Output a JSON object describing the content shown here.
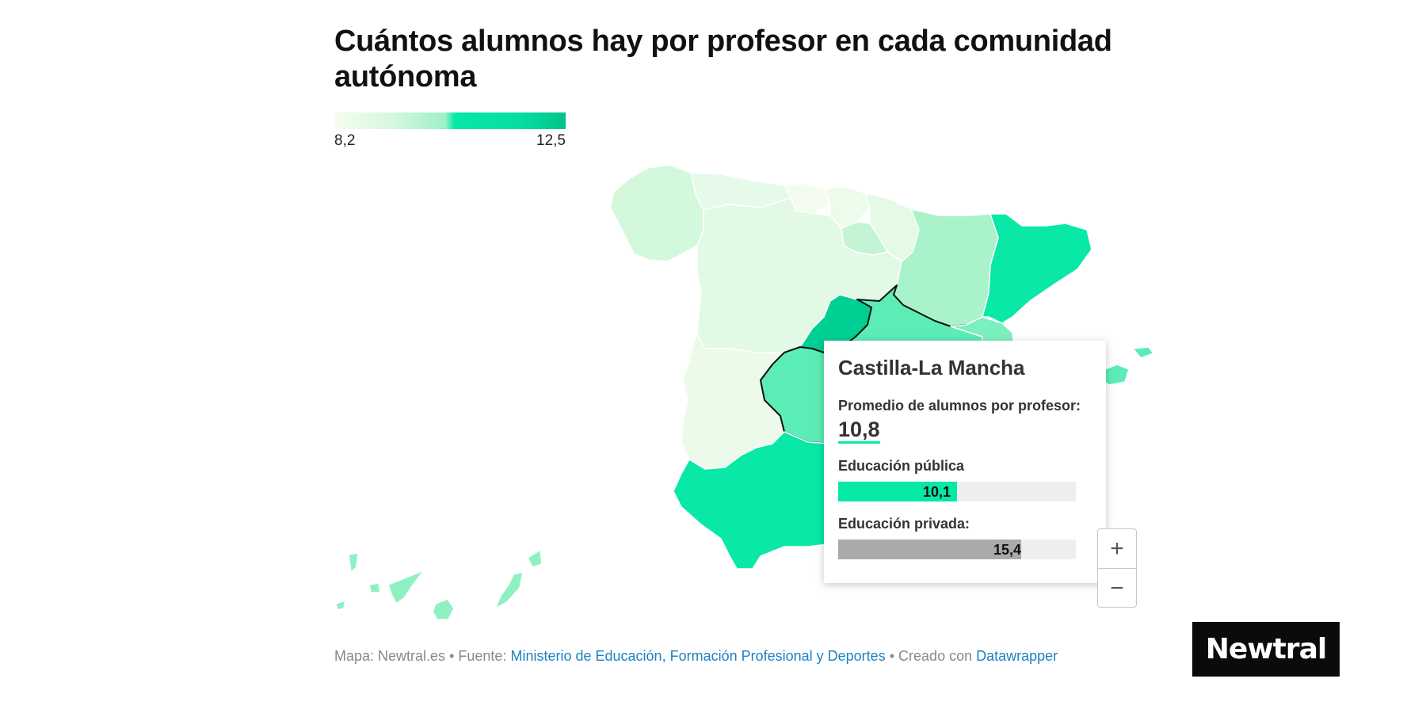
{
  "title": "Cuántos alumnos hay por profesor en cada comunidad autónoma",
  "legend": {
    "min_label": "8,2",
    "max_label": "12,5",
    "min": 8.2,
    "max": 12.5,
    "colors": [
      "#f5fdf0",
      "#d6f8dd",
      "#9ef0c8",
      "#05e8a6",
      "#00c489"
    ]
  },
  "tooltip": {
    "region": "Castilla-La Mancha",
    "avg_label": "Promedio de alumnos por profesor:",
    "avg_value": "10,8",
    "public_label": "Educación pública",
    "public_value": "10,1",
    "public_fraction": 0.5,
    "public_color": "#05e8a6",
    "private_label": "Educación privada:",
    "private_value": "15,4",
    "private_fraction": 0.77,
    "private_color": "#aaaaaa"
  },
  "zoom": {
    "in_label": "+",
    "out_label": "−"
  },
  "footer": {
    "map_credit": "Mapa: Newtral.es",
    "separator": "•",
    "source_prefix": "Fuente:",
    "source_link": "Ministerio de Educación, Formación Profesional y Deportes",
    "created_prefix": "Creado con",
    "created_link": "Datawrapper"
  },
  "logo": {
    "text": "Newtral"
  },
  "colors": {
    "lightest": "#f3fcee",
    "light": "#d9f8de",
    "mid_light": "#bdf5d3",
    "mid": "#8ff1c2",
    "mid_strong": "#55ecb3",
    "strong": "#05e8a6",
    "darkest": "#00c98e"
  }
}
